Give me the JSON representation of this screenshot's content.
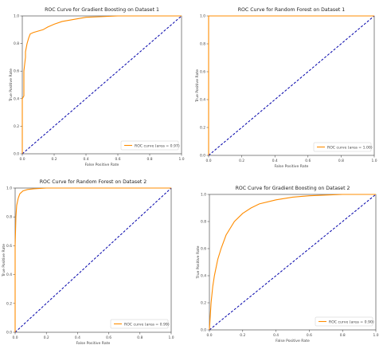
{
  "chart_data": [
    {
      "type": "line",
      "title": "ROC Curve for Gradient Boosting on Dataset 1",
      "xlabel": "False Positive Rate",
      "ylabel": "True Positive Rate",
      "xlim": [
        0.0,
        1.0
      ],
      "ylim": [
        0.0,
        1.0
      ],
      "x_ticks": [
        0.0,
        0.2,
        0.4,
        0.6,
        0.8,
        1.0
      ],
      "x_tick_labels": [
        "0.0",
        "0.2",
        "0.4",
        "0.6",
        "0.8",
        "1.0"
      ],
      "y_ticks": [
        0.0,
        0.2,
        0.4,
        0.6,
        0.8,
        1.0
      ],
      "y_tick_labels": [
        "0.0",
        "0.2",
        "0.4",
        "0.6",
        "0.8",
        "1.0"
      ],
      "grid": false,
      "legend_position": "bottom-right",
      "colors": {
        "roc": "#ff8c00",
        "chance": "#0000aa"
      },
      "series": [
        {
          "name": "ROC curve (area = 0.97)",
          "x": [
            0.0,
            0.0,
            0.01,
            0.01,
            0.02,
            0.02,
            0.03,
            0.04,
            0.05,
            0.07,
            0.1,
            0.13,
            0.16,
            0.2,
            0.25,
            0.3,
            0.35,
            0.4,
            0.5,
            0.6,
            0.7,
            0.8,
            0.9,
            1.0
          ],
          "y": [
            0.0,
            0.4,
            0.42,
            0.6,
            0.7,
            0.74,
            0.8,
            0.84,
            0.87,
            0.88,
            0.89,
            0.9,
            0.92,
            0.94,
            0.96,
            0.97,
            0.98,
            0.99,
            0.995,
            1.0,
            1.0,
            1.0,
            1.0,
            1.0
          ]
        },
        {
          "x": [
            0.0,
            1.0
          ],
          "y": [
            0.0,
            1.0
          ]
        }
      ]
    },
    {
      "type": "line",
      "title": "ROC Curve for Random Forest on Dataset 1",
      "xlabel": "False Positive Rate",
      "ylabel": "True Positive Rate",
      "xlim": [
        0.0,
        1.0
      ],
      "ylim": [
        0.0,
        1.0
      ],
      "x_ticks": [
        0.0,
        0.2,
        0.4,
        0.6,
        0.8,
        1.0
      ],
      "x_tick_labels": [
        "0.0",
        "0.2",
        "0.4",
        "0.6",
        "0.8",
        "1.0"
      ],
      "y_ticks": [
        0.0,
        0.2,
        0.4,
        0.6,
        0.8,
        1.0
      ],
      "y_tick_labels": [
        "0.0",
        "0.2",
        "0.4",
        "0.6",
        "0.8",
        "1.0"
      ],
      "grid": false,
      "legend_position": "bottom-right",
      "colors": {
        "roc": "#ff8c00",
        "chance": "#0000aa"
      },
      "series": [
        {
          "name": "ROC curve (area = 1.00)",
          "x": [
            0.0,
            0.0,
            1.0
          ],
          "y": [
            0.0,
            1.0,
            1.0
          ]
        },
        {
          "x": [
            0.0,
            1.0
          ],
          "y": [
            0.0,
            1.0
          ]
        }
      ]
    },
    {
      "type": "line",
      "title": "ROC Curve for Random Forest on Dataset 2",
      "xlabel": "False Positive Rate",
      "ylabel": "True Positive Rate",
      "xlim": [
        0.0,
        1.0
      ],
      "ylim": [
        0.0,
        1.0
      ],
      "x_ticks": [
        0.0,
        0.2,
        0.4,
        0.6,
        0.8,
        1.0
      ],
      "x_tick_labels": [
        "0.0",
        "0.2",
        "0.4",
        "0.6",
        "0.8",
        "1.0"
      ],
      "y_ticks": [
        0.0,
        0.2,
        0.4,
        0.6,
        0.8,
        1.0
      ],
      "y_tick_labels": [
        "0.0",
        "0.2",
        "0.4",
        "0.6",
        "0.8",
        "1.0"
      ],
      "grid": false,
      "legend_position": "bottom-right",
      "colors": {
        "roc": "#ff8c00",
        "chance": "#0000aa"
      },
      "series": [
        {
          "name": "ROC curve (area = 0.99)",
          "x": [
            0.0,
            0.0,
            0.005,
            0.01,
            0.02,
            0.03,
            0.05,
            0.08,
            0.12,
            0.2,
            0.4,
            0.6,
            0.8,
            1.0
          ],
          "y": [
            0.0,
            0.6,
            0.8,
            0.88,
            0.93,
            0.96,
            0.98,
            0.99,
            0.995,
            1.0,
            1.0,
            1.0,
            1.0,
            1.0
          ]
        },
        {
          "x": [
            0.0,
            1.0
          ],
          "y": [
            0.0,
            1.0
          ]
        }
      ]
    },
    {
      "type": "line",
      "title": "ROC Curve for Gradient Boosting on Dataset 2",
      "xlabel": "False Positive Rate",
      "ylabel": "True Positive Rate",
      "xlim": [
        0.0,
        1.0
      ],
      "ylim": [
        0.0,
        1.0
      ],
      "x_ticks": [
        0.0,
        0.2,
        0.4,
        0.6,
        0.8,
        1.0
      ],
      "x_tick_labels": [
        "0.0",
        "0.2",
        "0.4",
        "0.6",
        "0.8",
        "1.0"
      ],
      "y_ticks": [
        0.0,
        0.2,
        0.4,
        0.6,
        0.8,
        1.0
      ],
      "y_tick_labels": [
        "0.0",
        "0.2",
        "0.4",
        "0.6",
        "0.8",
        "1.0"
      ],
      "grid": false,
      "legend_position": "bottom-right",
      "colors": {
        "roc": "#ff8c00",
        "chance": "#0000aa"
      },
      "series": [
        {
          "name": "ROC curve (area = 0.90)",
          "x": [
            0.0,
            0.005,
            0.01,
            0.02,
            0.03,
            0.05,
            0.07,
            0.1,
            0.15,
            0.2,
            0.25,
            0.3,
            0.4,
            0.5,
            0.6,
            0.7,
            0.8,
            0.9,
            1.0
          ],
          "y": [
            0.0,
            0.1,
            0.2,
            0.32,
            0.4,
            0.52,
            0.6,
            0.7,
            0.8,
            0.86,
            0.9,
            0.93,
            0.96,
            0.98,
            0.99,
            0.995,
            1.0,
            1.0,
            1.0
          ]
        },
        {
          "x": [
            0.0,
            1.0
          ],
          "y": [
            0.0,
            1.0
          ]
        }
      ]
    }
  ]
}
